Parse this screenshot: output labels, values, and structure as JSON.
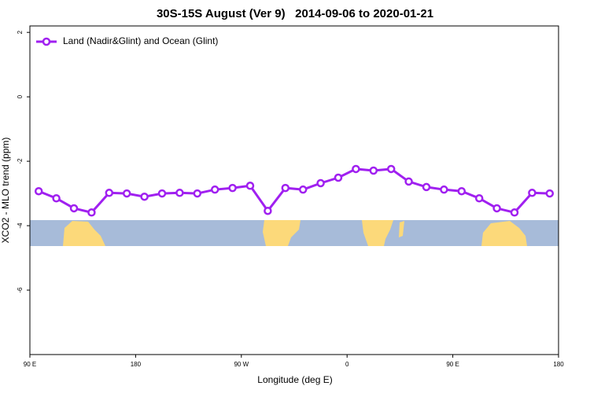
{
  "chart_data": {
    "type": "line",
    "title": "30S-15S August (Ver 9)   2014-09-06 to 2020-01-21",
    "xlabel": "Longitude (deg E)",
    "ylabel": "XCO2 - MLO trend (ppm)",
    "x": [
      97.5,
      112.5,
      127.5,
      142.5,
      157.5,
      172.5,
      187.5,
      202.5,
      217.5,
      232.5,
      247.5,
      262.5,
      277.5,
      292.5,
      307.5,
      322.5,
      337.5,
      352.5,
      367.5,
      382.5,
      397.5,
      412.5,
      427.5,
      442.5,
      457.5,
      472.5,
      487.5,
      502.5,
      517.5,
      532.5
    ],
    "series": [
      {
        "name": "Land (Nadir&Glint) and Ocean (Glint)",
        "color": "#a020f0",
        "values": [
          -2.93,
          -3.15,
          -3.46,
          -3.59,
          -2.98,
          -3.0,
          -3.1,
          -3.0,
          -2.98,
          -3.0,
          -2.88,
          -2.83,
          -2.76,
          -3.54,
          -2.83,
          -2.88,
          -2.68,
          -2.51,
          -2.24,
          -2.29,
          -2.24,
          -2.63,
          -2.8,
          -2.88,
          -2.93,
          -3.15,
          -3.46,
          -3.59,
          -2.98,
          -3.0
        ]
      }
    ],
    "xlim": [
      90,
      540
    ],
    "xticks": [
      {
        "value": 90,
        "label": "90 E"
      },
      {
        "value": 180,
        "label": "180"
      },
      {
        "value": 270,
        "label": "90 W"
      },
      {
        "value": 360,
        "label": "0"
      },
      {
        "value": 450,
        "label": "90 E"
      },
      {
        "value": 540,
        "label": "180"
      }
    ],
    "ylim": [
      -8,
      2.2
    ],
    "yticks": [
      2,
      0,
      -2,
      -4,
      -6
    ],
    "grid": false,
    "legend": "top-left"
  }
}
